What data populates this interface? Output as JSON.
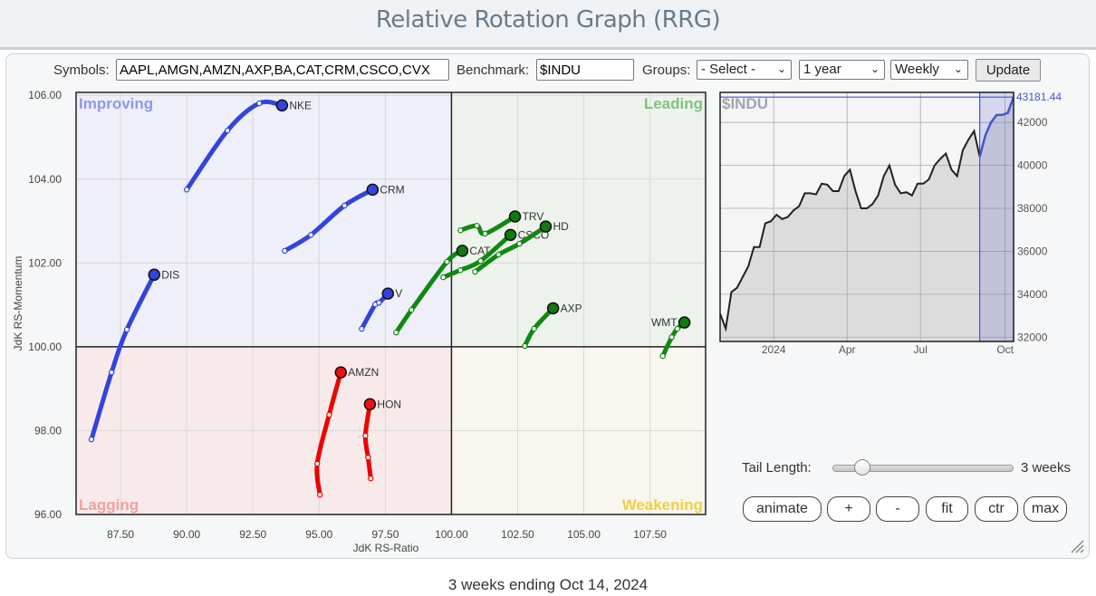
{
  "header": {
    "title": "Relative Rotation Graph (RRG)"
  },
  "toolbar": {
    "symbols_label": "Symbols:",
    "symbols_value": "AAPL,AMGN,AMZN,AXP,BA,CAT,CRM,CSCO,CVX",
    "benchmark_label": "Benchmark:",
    "benchmark_value": "$INDU",
    "groups_label": "Groups:",
    "groups_selected": "- Select -",
    "period_selected": "1 year",
    "frequency_selected": "Weekly",
    "update_label": "Update"
  },
  "controls": {
    "tail_length_label": "Tail Length:",
    "tail_length_value": "3 weeks",
    "tail_length_weeks": 3,
    "tail_length_range": [
      1,
      20
    ],
    "buttons": {
      "animate": "animate",
      "zoom_in": "+",
      "zoom_out": "-",
      "fit": "fit",
      "center": "ctr",
      "max": "max"
    }
  },
  "footer": {
    "caption": "3 weeks ending Oct 14, 2024"
  },
  "colors": {
    "improving": "#3344dd",
    "leading": "#118811",
    "lagging": "#ee0000",
    "weakening": "#f0d040",
    "benchmark_highlight": "#4455cc"
  },
  "chart_data": [
    {
      "type": "scatter",
      "title": "",
      "xlabel": "JdK RS-Ratio",
      "ylabel": "JdK RS-Momentum",
      "xlim": [
        85.82,
        109.6
      ],
      "ylim": [
        96.0,
        106.07
      ],
      "xticks": [
        "87.50",
        "90.00",
        "92.50",
        "95.00",
        "97.50",
        "100.00",
        "102.50",
        "105.00",
        "107.50"
      ],
      "xtick_values": [
        87.5,
        90,
        92.5,
        95,
        97.5,
        100,
        102.5,
        105,
        107.5
      ],
      "yticks": [
        "96.00",
        "98.00",
        "100.00",
        "102.00",
        "104.00",
        "106.00"
      ],
      "ytick_values": [
        96,
        98,
        100,
        102,
        104,
        106
      ],
      "grid": true,
      "quadrants": {
        "top_left": "Improving",
        "top_right": "Leading",
        "bottom_left": "Lagging",
        "bottom_right": "Weakening"
      },
      "series": [
        {
          "name": "NKE",
          "quadrant": "improving",
          "x": [
            90.0,
            91.54,
            92.74,
            93.6
          ],
          "y": [
            103.75,
            105.16,
            105.81,
            105.76
          ]
        },
        {
          "name": "CRM",
          "quadrant": "improving",
          "x": [
            93.7,
            94.69,
            95.96,
            97.02
          ],
          "y": [
            102.29,
            102.67,
            103.37,
            103.75
          ]
        },
        {
          "name": "DIS",
          "quadrant": "improving",
          "x": [
            86.4,
            87.16,
            87.74,
            88.77
          ],
          "y": [
            97.79,
            99.39,
            100.41,
            101.72
          ]
        },
        {
          "name": "V",
          "quadrant": "improving",
          "x": [
            96.61,
            97.12,
            97.26,
            97.6
          ],
          "y": [
            100.43,
            101.01,
            101.05,
            101.27
          ]
        },
        {
          "name": "CAT",
          "quadrant": "leading",
          "x": [
            97.91,
            98.49,
            99.83,
            100.41
          ],
          "y": [
            100.34,
            100.88,
            102.03,
            102.29
          ]
        },
        {
          "name": "CSCO",
          "quadrant": "leading",
          "x": [
            99.69,
            100.34,
            101.1,
            102.23
          ],
          "y": [
            101.66,
            101.83,
            102.05,
            102.67
          ]
        },
        {
          "name": "HD",
          "quadrant": "leading",
          "x": [
            100.89,
            101.78,
            102.57,
            103.56
          ],
          "y": [
            101.79,
            102.2,
            102.46,
            102.87
          ]
        },
        {
          "name": "TRV",
          "quadrant": "leading",
          "x": [
            100.34,
            100.96,
            101.27,
            102.4
          ],
          "y": [
            102.78,
            102.89,
            102.7,
            103.11
          ]
        },
        {
          "name": "AXP",
          "quadrant": "leading",
          "x": [
            102.77,
            103.12,
            103.84
          ],
          "y": [
            100.02,
            100.43,
            100.92
          ]
        },
        {
          "name": "WMT",
          "quadrant": "leading",
          "x": [
            107.98,
            108.32,
            108.53,
            108.8
          ],
          "y": [
            99.78,
            100.23,
            100.43,
            100.58
          ]
        },
        {
          "name": "AMZN",
          "quadrant": "lagging",
          "x": [
            95.03,
            94.93,
            95.38,
            95.82
          ],
          "y": [
            96.47,
            97.21,
            98.38,
            99.39
          ]
        },
        {
          "name": "HON",
          "quadrant": "lagging",
          "x": [
            96.95,
            96.85,
            96.75,
            96.92
          ],
          "y": [
            96.86,
            97.36,
            97.88,
            98.63
          ]
        }
      ]
    },
    {
      "type": "area",
      "title": "$INDU",
      "last_value_label": "43181.44",
      "ylim": [
        31800,
        43400
      ],
      "yticks": [
        "32000",
        "34000",
        "36000",
        "38000",
        "40000",
        "42000"
      ],
      "ytick_values": [
        32000,
        34000,
        36000,
        38000,
        40000,
        42000
      ],
      "xticks": [
        "2024",
        "Apr",
        "Jul",
        "Oct"
      ],
      "xtick_weeks": [
        9.5,
        22.5,
        35.5,
        50.5
      ],
      "highlight_weeks": [
        46,
        51
      ],
      "values": [
        33100,
        32400,
        34100,
        34300,
        34800,
        35300,
        36200,
        36200,
        37300,
        37400,
        37700,
        37500,
        37600,
        37900,
        38100,
        38700,
        38700,
        38650,
        39150,
        39100,
        38800,
        38800,
        39500,
        39800,
        38800,
        38000,
        38000,
        38200,
        38600,
        39500,
        40000,
        39100,
        38700,
        38750,
        38600,
        39150,
        39150,
        39350,
        40000,
        40300,
        40550,
        39800,
        39500,
        40700,
        41200,
        41600,
        40400,
        41400,
        42000,
        42350,
        42350,
        42450,
        43181.44
      ]
    }
  ]
}
